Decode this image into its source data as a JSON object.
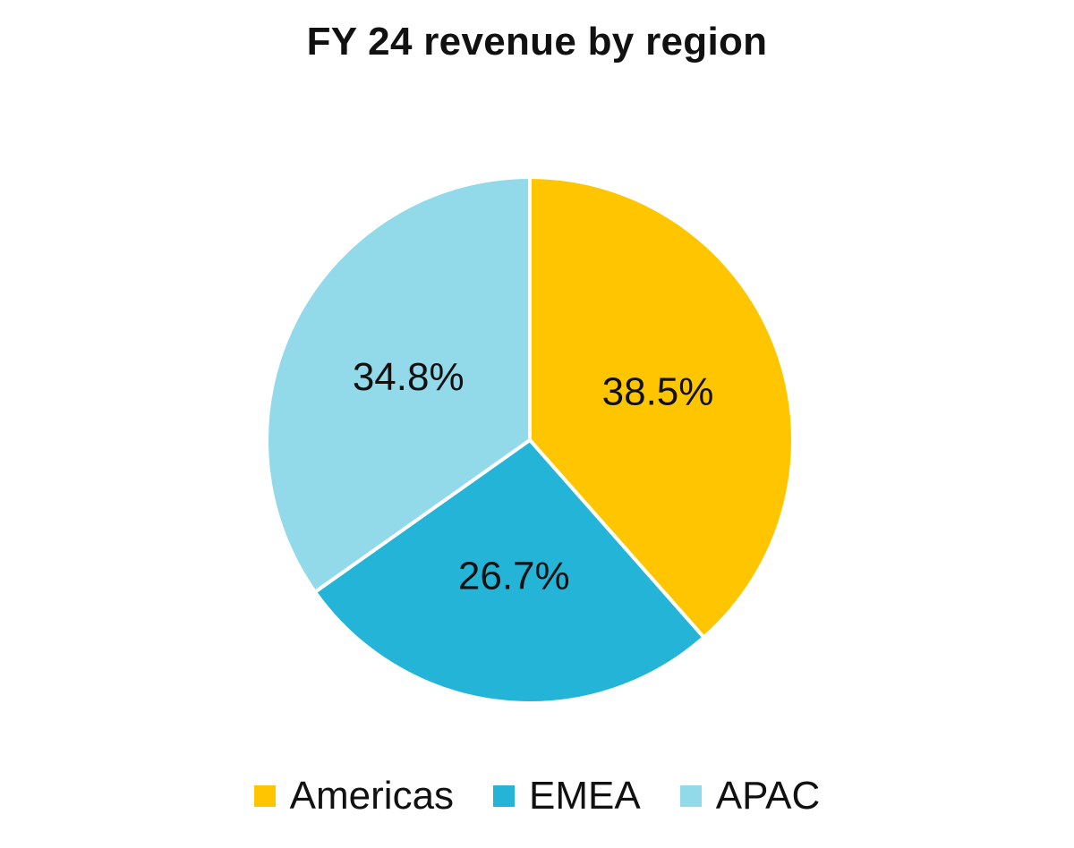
{
  "chart_data": {
    "type": "pie",
    "title": "FY 24 revenue by region",
    "categories": [
      "Americas",
      "EMEA",
      "APAC"
    ],
    "values": [
      38.5,
      26.7,
      34.8
    ],
    "labels": [
      "38.5%",
      "26.7%",
      "34.8%"
    ],
    "colors": [
      "#ffc600",
      "#23b4d8",
      "#92d9ea"
    ],
    "legend_position": "bottom"
  }
}
